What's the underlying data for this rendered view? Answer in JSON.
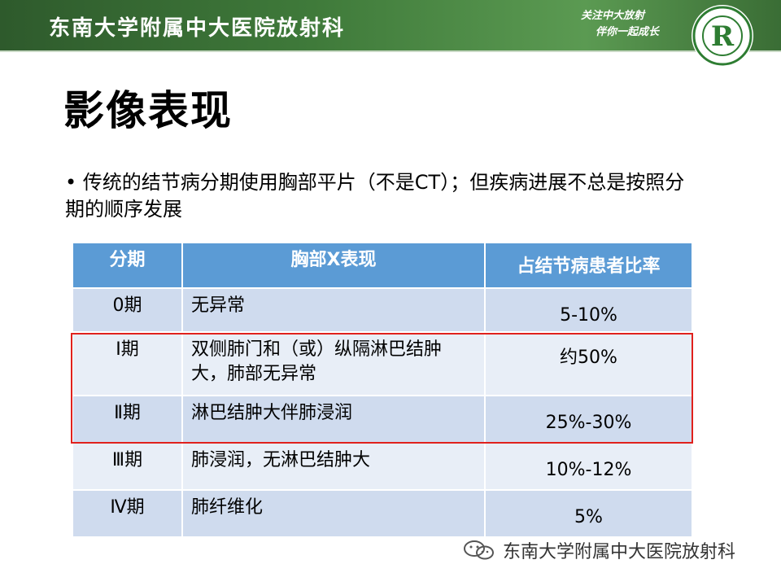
{
  "header": {
    "institution": "东南大学附属中大医院放射科",
    "slogan_line1": "关注中大放射",
    "slogan_line2": "伴你一起成长",
    "logo_letter": "R"
  },
  "slide": {
    "title": "影像表现",
    "bullet": "• 传统的结节病分期使用胸部平片（不是CT）；但疾病进展不总是按照分期的顺序发展"
  },
  "table": {
    "headers": [
      "分期",
      "胸部X表现",
      "占结节病患者比率"
    ],
    "rows": [
      {
        "stage": "0期",
        "finding": "无异常",
        "rate": "5-10%"
      },
      {
        "stage": "Ⅰ期",
        "finding": "双侧肺门和（或）纵隔淋巴结肿大，肺部无异常",
        "rate": "约50%"
      },
      {
        "stage": "Ⅱ期",
        "finding": "淋巴结肿大伴肺浸润",
        "rate": "25%-30%"
      },
      {
        "stage": "Ⅲ期",
        "finding": "肺浸润，无淋巴结肿大",
        "rate": "10%-12%"
      },
      {
        "stage": "Ⅳ期",
        "finding": "肺纤维化",
        "rate": "5%"
      }
    ]
  },
  "footer": {
    "text": "东南大学附属中大医院放射科"
  },
  "colors": {
    "header_green": "#3f7a3a",
    "table_header_blue": "#5b9bd5",
    "row_dark": "#cfdbee",
    "row_light": "#e8eef7",
    "highlight_red": "#e0211d"
  }
}
